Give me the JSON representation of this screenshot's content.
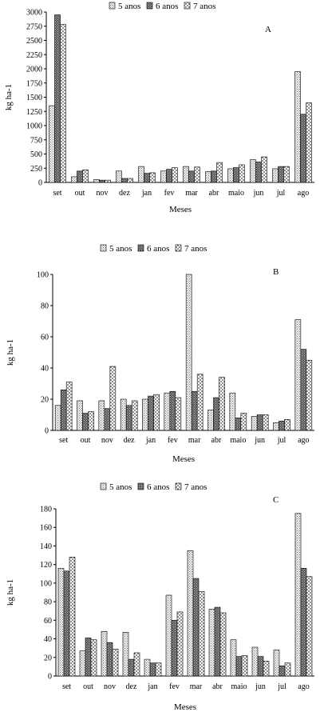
{
  "chart_data": [
    {
      "type": "bar",
      "panel_letter": "A",
      "categories": [
        "set",
        "out",
        "nov",
        "dez",
        "jan",
        "fev",
        "mar",
        "abr",
        "maio",
        "jun",
        "jul",
        "ago"
      ],
      "series": [
        {
          "name": "5 anos",
          "values": [
            1350,
            100,
            50,
            200,
            280,
            200,
            280,
            190,
            240,
            400,
            240,
            1950
          ]
        },
        {
          "name": "6 anos",
          "values": [
            2950,
            200,
            40,
            70,
            160,
            230,
            200,
            200,
            260,
            360,
            280,
            1200
          ]
        },
        {
          "name": "7 anos",
          "values": [
            2780,
            220,
            40,
            70,
            170,
            260,
            270,
            350,
            310,
            450,
            280,
            1400
          ]
        }
      ],
      "xlabel": "Meses",
      "ylabel": "kg ha-1",
      "ylim": [
        0,
        3000
      ],
      "yticks": [
        "0",
        "250",
        "500",
        "750",
        "1000",
        "1250",
        "1500",
        "1750",
        "2000",
        "2250",
        "2500",
        "2750",
        "3000"
      ]
    },
    {
      "type": "bar",
      "panel_letter": "B",
      "categories": [
        "set",
        "out",
        "nov",
        "dez",
        "jan",
        "fev",
        "mar",
        "abr",
        "maio",
        "jun",
        "jul",
        "ago"
      ],
      "series": [
        {
          "name": "5 anos",
          "values": [
            16,
            19,
            19,
            20,
            20,
            24,
            100,
            13,
            24,
            9,
            5,
            71
          ]
        },
        {
          "name": "6 anos",
          "values": [
            26,
            11,
            14,
            16,
            22,
            25,
            25,
            21,
            8,
            10,
            6,
            52
          ]
        },
        {
          "name": "7 anos",
          "values": [
            31,
            12,
            41,
            19,
            23,
            21,
            36,
            34,
            11,
            10,
            7,
            45
          ]
        }
      ],
      "xlabel": "Meses",
      "ylabel": "kg ha-1",
      "ylim": [
        0,
        100
      ],
      "yticks": [
        "0",
        "20",
        "40",
        "60",
        "80",
        "100"
      ]
    },
    {
      "type": "bar",
      "panel_letter": "C",
      "categories": [
        "set",
        "out",
        "nov",
        "dez",
        "jan",
        "fev",
        "mar",
        "abr",
        "maio",
        "jun",
        "jul",
        "ago"
      ],
      "series": [
        {
          "name": "5 anos",
          "values": [
            116,
            27,
            48,
            47,
            18,
            87,
            135,
            72,
            39,
            31,
            28,
            175
          ]
        },
        {
          "name": "6 anos",
          "values": [
            113,
            41,
            36,
            18,
            14,
            60,
            105,
            74,
            21,
            21,
            11,
            116
          ]
        },
        {
          "name": "7 anos",
          "values": [
            128,
            39,
            29,
            25,
            14,
            69,
            91,
            68,
            22,
            16,
            14,
            107
          ]
        }
      ],
      "xlabel": "Meses",
      "ylabel": "kg ha-1",
      "ylim": [
        0,
        180
      ],
      "yticks": [
        "0",
        "20",
        "40",
        "60",
        "80",
        "100",
        "120",
        "140",
        "160",
        "180"
      ]
    }
  ]
}
